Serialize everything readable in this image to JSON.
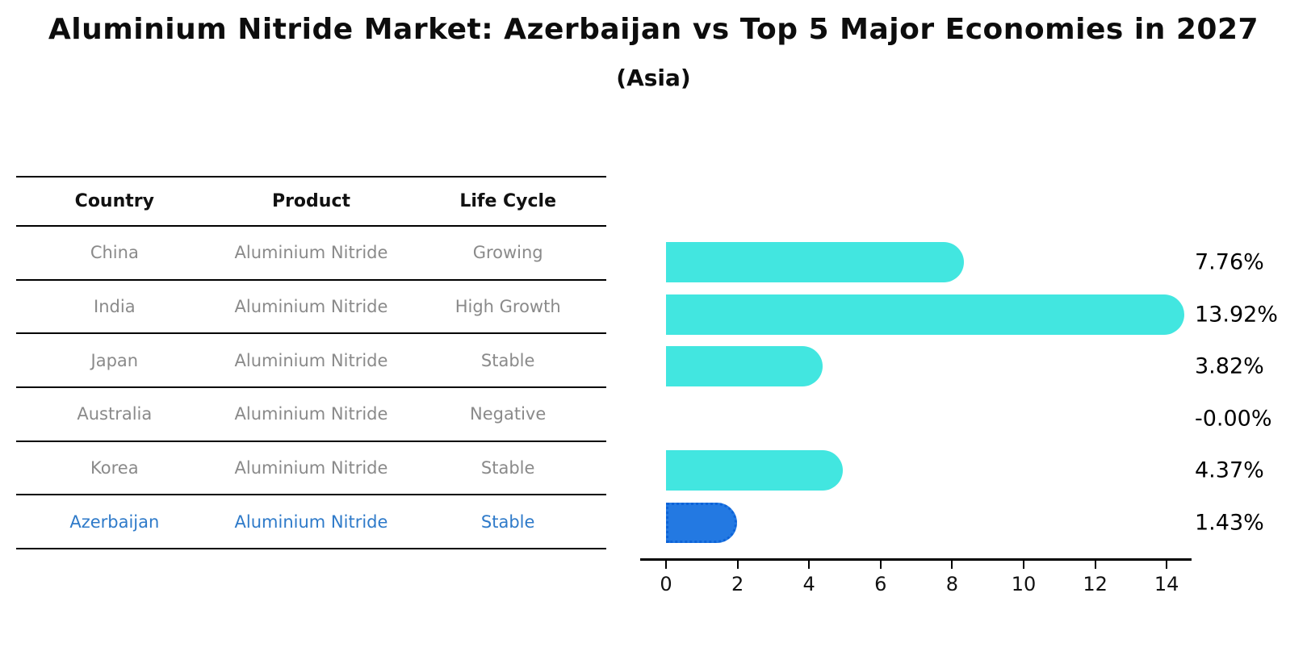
{
  "title": "Aluminium Nitride Market: Azerbaijan vs Top 5 Major Economies in 2027",
  "subtitle": "(Asia)",
  "table": {
    "headers": [
      "Country",
      "Product",
      "Life Cycle"
    ],
    "rows": [
      {
        "country": "China",
        "product": "Aluminium Nitride",
        "life_cycle": "Growing",
        "highlight": false
      },
      {
        "country": "India",
        "product": "Aluminium Nitride",
        "life_cycle": "High Growth",
        "highlight": false
      },
      {
        "country": "Japan",
        "product": "Aluminium Nitride",
        "life_cycle": "Stable",
        "highlight": false
      },
      {
        "country": "Australia",
        "product": "Aluminium Nitride",
        "life_cycle": "Negative",
        "highlight": false
      },
      {
        "country": "Korea",
        "product": "Aluminium Nitride",
        "life_cycle": "Stable",
        "highlight": false
      },
      {
        "country": "Azerbaijan",
        "product": "Aluminium Nitride",
        "life_cycle": "Stable",
        "highlight": true
      }
    ]
  },
  "chart_data": {
    "type": "bar",
    "orientation": "horizontal",
    "title": "Aluminium Nitride Market: Azerbaijan vs Top 5 Major Economies in 2027",
    "subtitle": "(Asia)",
    "categories": [
      "China",
      "India",
      "Japan",
      "Australia",
      "Korea",
      "Azerbaijan"
    ],
    "values": [
      7.76,
      13.92,
      3.82,
      0.0,
      4.37,
      1.43
    ],
    "bar_labels": [
      "7.76%",
      "13.92%",
      "3.82%",
      "-0.00%",
      "4.37%",
      "1.43%"
    ],
    "x_ticks": [
      0,
      2,
      4,
      6,
      8,
      10,
      12,
      14
    ],
    "xlim": [
      0,
      14.7
    ],
    "grid": false,
    "legend": false,
    "bar_color": "#42e6e0",
    "highlight_color": "#2379e2",
    "highlight_index": 5,
    "highlight_border_style": "dotted"
  },
  "colors": {
    "background": "#ffffff",
    "table_text": "#8a8a8a",
    "table_header_text": "#111111",
    "highlight_text": "#2e7ac9",
    "axis": "#000000",
    "value_label_text": "#000000"
  }
}
